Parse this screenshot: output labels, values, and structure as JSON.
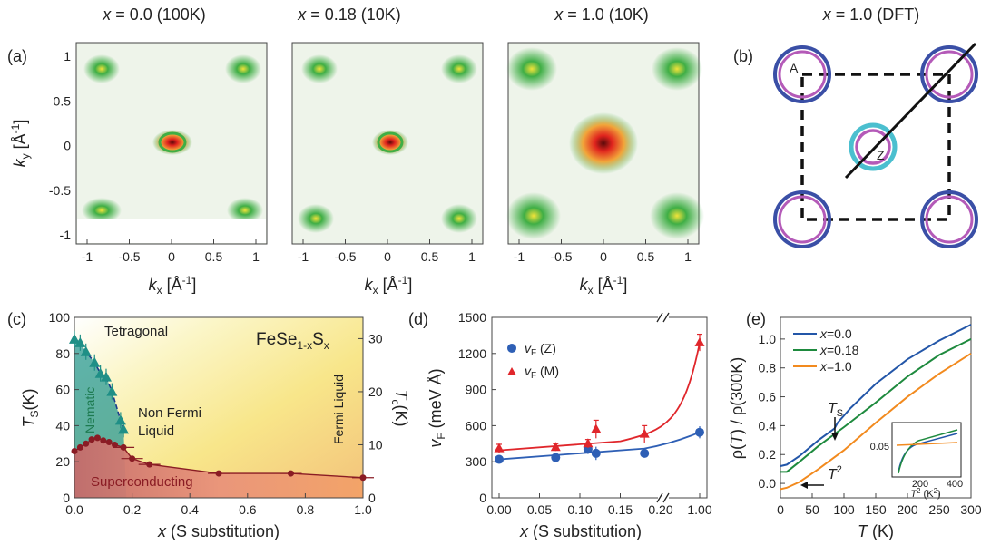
{
  "figure": {
    "titles": {
      "a1": {
        "var": "x",
        "rest": " = 0.0 (100K)"
      },
      "a2": {
        "var": "x",
        "rest": " = 0.18 (10K)"
      },
      "a3": {
        "var": "x",
        "rest": " = 1.0 (10K)"
      },
      "b": {
        "var": "x",
        "rest": " = 1.0 (DFT)"
      }
    },
    "panel_labels": {
      "a": "(a)",
      "b": "(b)",
      "c": "(c)",
      "d": "(d)",
      "e": "(e)"
    }
  },
  "panel_a": {
    "ylabel": {
      "base": "k",
      "sub": "y",
      "unit": " [Å",
      "sup": "-1",
      "close": "]"
    },
    "xlabel": {
      "base": "k",
      "sub": "x",
      "unit": " [Å",
      "sup": "-1",
      "close": "]"
    },
    "yticks": [
      "1",
      "0.5",
      "0",
      "-0.5",
      "-1"
    ],
    "xticks": [
      "-1",
      "-0.5",
      "0",
      "0.5",
      "1"
    ],
    "colors": {
      "bg": "#eef4ea",
      "green": "#3fae45",
      "core": "#e0241e",
      "yellow": "#f2e33a"
    }
  },
  "panel_b": {
    "label_A": "A",
    "label_Z": "Z",
    "colors": {
      "outer": "#3a4fa6",
      "inner": "#b45ab8",
      "cyan": "#4bbfcf"
    }
  },
  "chart_data": [
    {
      "panel": "c",
      "type": "scatter",
      "title": "FeSe1-xSx",
      "title_parts": {
        "base": "FeSe",
        "sub1": "1-x",
        "s": "S",
        "sub2": "x"
      },
      "xlabel": {
        "var": "x",
        "rest": " (S substitution)"
      },
      "ylabel": {
        "base": "T",
        "sub": "S",
        "rest": "(K)"
      },
      "ylabel_right": {
        "base": "T",
        "sub": "c",
        "rest": "(K)"
      },
      "xlim": [
        0,
        1.0
      ],
      "ylim": [
        0,
        100
      ],
      "ylim_right": [
        0,
        34
      ],
      "xticks": [
        "0.0",
        "0.2",
        "0.4",
        "0.6",
        "0.8",
        "1.0"
      ],
      "yticks": [
        "0",
        "20",
        "40",
        "60",
        "80",
        "100"
      ],
      "yticks_right": [
        "0",
        "10",
        "20",
        "30"
      ],
      "region_labels": {
        "tetragonal": "Tetragonal",
        "nematic": "Nematic",
        "nfl1": "Non Fermi",
        "nfl2": "Liquid",
        "fermi": "Fermi Liquid",
        "sc": "Superconducting"
      },
      "series": [
        {
          "name": "Ts",
          "color": "#1f8f86",
          "x": [
            0.0,
            0.02,
            0.04,
            0.07,
            0.09,
            0.11,
            0.13,
            0.16,
            0.17
          ],
          "y": [
            88,
            86,
            81,
            75,
            69,
            67,
            59,
            43,
            38
          ]
        },
        {
          "name": "Tc",
          "color": "#8a1c24",
          "x": [
            0.0,
            0.02,
            0.04,
            0.06,
            0.08,
            0.1,
            0.12,
            0.14,
            0.17,
            0.2,
            0.26,
            0.5,
            0.75,
            1.0
          ],
          "y": [
            8.8,
            9.5,
            10.2,
            11.0,
            11.3,
            10.8,
            10.5,
            10.0,
            9.5,
            7.4,
            6.3,
            4.6,
            4.6,
            3.8
          ]
        }
      ],
      "colors": {
        "nematic": "#2a9a96",
        "sc": "#c0504d"
      }
    },
    {
      "panel": "d",
      "type": "scatter",
      "xlabel": {
        "var": "x",
        "rest": " (S substitution)"
      },
      "ylabel": {
        "base": "v",
        "sub": "F",
        "rest": " (meV Å)"
      },
      "ylim": [
        0,
        1500
      ],
      "xticks": [
        "0.00",
        "0.05",
        "0.10",
        "0.15",
        "0.20",
        "1.00"
      ],
      "yticks": [
        "0",
        "300",
        "600",
        "900",
        "1200",
        "1500"
      ],
      "legend": [
        {
          "base": "v",
          "sub": "F",
          "rest": " (Z)",
          "color": "#2e5fb5",
          "marker": "circle"
        },
        {
          "base": "v",
          "sub": "F",
          "rest": " (M)",
          "color": "#e0262b",
          "marker": "triangle"
        }
      ],
      "series": [
        {
          "name": "vF(Z)",
          "color": "#2e5fb5",
          "x": [
            0.0,
            0.07,
            0.11,
            0.12,
            0.18,
            1.0
          ],
          "y": [
            320,
            335,
            405,
            370,
            370,
            545
          ],
          "err": [
            15,
            20,
            40,
            55,
            25,
            50
          ]
        },
        {
          "name": "vF(M)",
          "color": "#e0262b",
          "x": [
            0.0,
            0.07,
            0.11,
            0.12,
            0.18,
            1.0
          ],
          "y": [
            410,
            420,
            450,
            570,
            530,
            1290
          ],
          "err": [
            35,
            30,
            35,
            75,
            70,
            70
          ]
        }
      ]
    },
    {
      "panel": "e",
      "type": "line",
      "xlabel": {
        "var": "T",
        "rest": " (K)"
      },
      "ylabel": {
        "a": "ρ(",
        "b": "T",
        "c": ") / ρ(300K)"
      },
      "xlim": [
        0,
        300
      ],
      "ylim": [
        -0.1,
        1.15
      ],
      "xticks": [
        "0",
        "50",
        "100",
        "150",
        "200",
        "250",
        "300"
      ],
      "yticks": [
        "0.0",
        "0.2",
        "0.4",
        "0.6",
        "0.8",
        "1.0"
      ],
      "annotations": {
        "ts": {
          "base": "T",
          "sub": "S"
        },
        "t2": {
          "base": "T",
          "sup": "2"
        }
      },
      "series": [
        {
          "name": "x=0.0",
          "label": {
            "var": "x",
            "rest": "=0.0"
          },
          "color": "#2356a8",
          "x": [
            0,
            10,
            30,
            60,
            85,
            90,
            110,
            150,
            200,
            250,
            300
          ],
          "y": [
            0.12,
            0.13,
            0.19,
            0.3,
            0.38,
            0.42,
            0.52,
            0.69,
            0.86,
            0.99,
            1.1
          ]
        },
        {
          "name": "x=0.18",
          "label": {
            "var": "x",
            "rest": "=0.18"
          },
          "color": "#1e8a3e",
          "x": [
            0,
            10,
            30,
            60,
            100,
            150,
            200,
            250,
            300
          ],
          "y": [
            0.08,
            0.08,
            0.15,
            0.26,
            0.39,
            0.56,
            0.74,
            0.89,
            1.0
          ]
        },
        {
          "name": "x=1.0",
          "label": {
            "var": "x",
            "rest": "=1.0"
          },
          "color": "#f28a1e",
          "x": [
            0,
            10,
            30,
            60,
            100,
            150,
            200,
            250,
            300
          ],
          "y": [
            -0.04,
            -0.03,
            0.01,
            0.1,
            0.23,
            0.42,
            0.6,
            0.76,
            0.9
          ]
        }
      ],
      "inset": {
        "xlabel": {
          "base": "T",
          "sup": "2",
          "rest": " (K",
          "sup2": "2",
          "close": ")"
        },
        "xticks": [
          "200",
          "400"
        ],
        "ytick": "0.05"
      }
    }
  ]
}
